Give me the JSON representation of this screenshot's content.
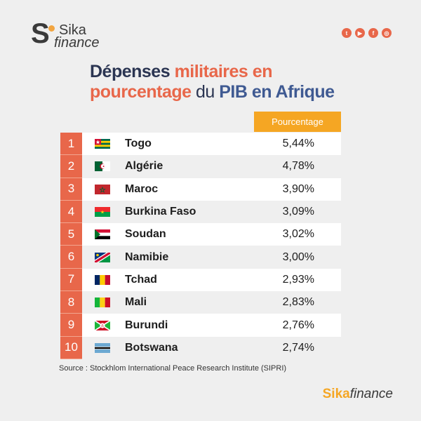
{
  "header": {
    "logo_line1": "Sika",
    "logo_line2": "finance",
    "logo_letter": "S",
    "socials": [
      {
        "icon": "twitter-icon",
        "glyph": "t"
      },
      {
        "icon": "youtube-icon",
        "glyph": "▶"
      },
      {
        "icon": "facebook-icon",
        "glyph": "f"
      },
      {
        "icon": "instagram-icon",
        "glyph": "◎"
      }
    ]
  },
  "title": {
    "part1": "Dépenses ",
    "part2": "militaires en",
    "part3": "pourcentage",
    "part4": " du ",
    "part5": "PIB en Afrique"
  },
  "table": {
    "column_header": "Pourcentage",
    "rows": [
      {
        "rank": "1",
        "country": "Togo",
        "value": "5,44%",
        "flag": "togo-flag-icon"
      },
      {
        "rank": "2",
        "country": "Algérie",
        "value": "4,78%",
        "flag": "algeria-flag-icon"
      },
      {
        "rank": "3",
        "country": "Maroc",
        "value": "3,90%",
        "flag": "morocco-flag-icon"
      },
      {
        "rank": "4",
        "country": "Burkina Faso",
        "value": "3,09%",
        "flag": "burkina-faso-flag-icon"
      },
      {
        "rank": "5",
        "country": "Soudan",
        "value": "3,02%",
        "flag": "sudan-flag-icon"
      },
      {
        "rank": "6",
        "country": "Namibie",
        "value": "3,00%",
        "flag": "namibia-flag-icon"
      },
      {
        "rank": "7",
        "country": "Tchad",
        "value": "2,93%",
        "flag": "chad-flag-icon"
      },
      {
        "rank": "8",
        "country": "Mali",
        "value": "2,83%",
        "flag": "mali-flag-icon"
      },
      {
        "rank": "9",
        "country": "Burundi",
        "value": "2,76%",
        "flag": "burundi-flag-icon"
      },
      {
        "rank": "10",
        "country": "Botswana",
        "value": "2,74%",
        "flag": "botswana-flag-icon"
      }
    ]
  },
  "source": "Source : Stockhlom International Peace Research Institute (SIPRI)",
  "footer": {
    "brand_a": "Sika",
    "brand_b": "finance"
  },
  "colors": {
    "accent": "#e8674a",
    "header": "#f5a623",
    "title_dark": "#2b3552",
    "title_blue": "#3f5a92"
  }
}
